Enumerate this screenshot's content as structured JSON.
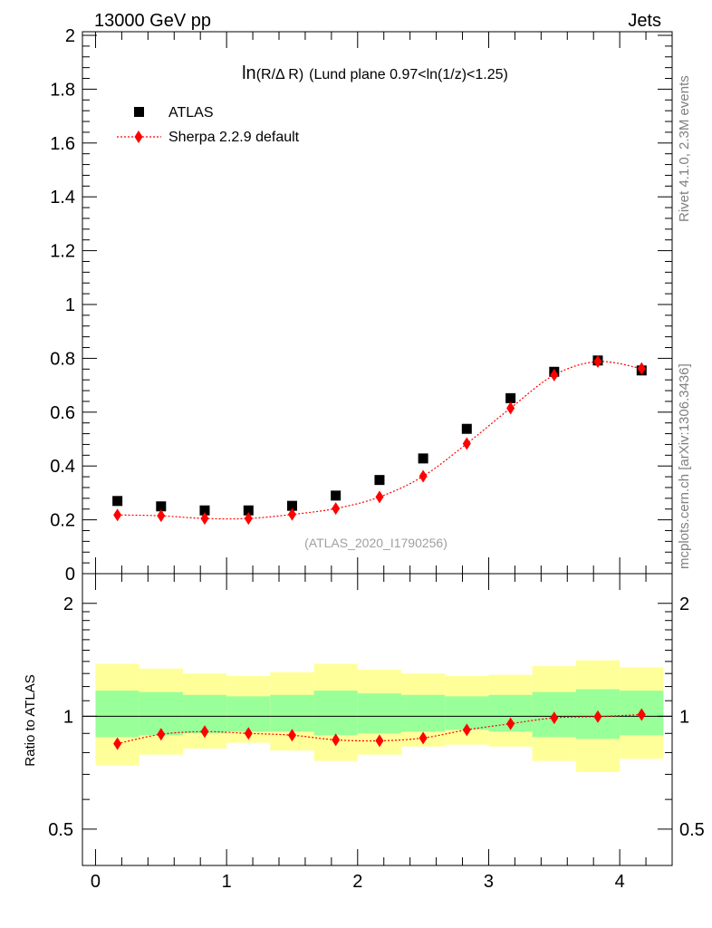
{
  "header": {
    "left": "13000 GeV pp",
    "right": "Jets"
  },
  "side_text": {
    "top": "Rivet 4.1.0,  2.3M events",
    "bottom": "mcplots.cern.ch [arXiv:1306.3436]"
  },
  "watermark": "(ATLAS_2020_I1790256)",
  "chart_data": [
    {
      "type": "scatter",
      "panel": "main",
      "title": "ln(R/Δ R) (Lund plane 0.97<ln(1/z)<1.25)",
      "title_parts": {
        "fn": "ln",
        "arg": "(R/Δ R)",
        "rest": "(Lund plane 0.97<ln(1/z)<1.25)"
      },
      "xlim": [
        -0.1,
        4.4
      ],
      "ylim": [
        0,
        2
      ],
      "yticks": [
        0,
        0.2,
        0.4,
        0.6,
        0.8,
        1,
        1.2,
        1.4,
        1.6,
        1.8,
        2
      ],
      "ytick_labels": [
        "0",
        "0.2",
        "0.4",
        "0.6",
        "0.8",
        "1",
        "1.2",
        "1.4",
        "1.6",
        "1.8",
        "2"
      ],
      "legend": {
        "position": "top-left"
      },
      "x": [
        0.167,
        0.5,
        0.833,
        1.167,
        1.5,
        1.833,
        2.167,
        2.5,
        2.833,
        3.167,
        3.5,
        3.833,
        4.167
      ],
      "series": [
        {
          "name": "ATLAS",
          "marker": "square",
          "color": "#000000",
          "values": [
            0.27,
            0.25,
            0.235,
            0.235,
            0.252,
            0.29,
            0.348,
            0.428,
            0.538,
            0.652,
            0.75,
            0.792,
            0.755
          ]
        },
        {
          "name": "Sherpa 2.2.9 default",
          "marker": "diamond",
          "color": "#ff0000",
          "line": "dotted",
          "values": [
            0.218,
            0.215,
            0.205,
            0.205,
            0.22,
            0.242,
            0.285,
            0.362,
            0.483,
            0.615,
            0.738,
            0.788,
            0.762
          ]
        }
      ]
    },
    {
      "type": "scatter",
      "panel": "ratio",
      "ylabel": "Ratio to ATLAS",
      "scale": "log",
      "xlim": [
        -0.1,
        4.4
      ],
      "ylim": [
        0.4,
        2.4
      ],
      "yticks": [
        0.5,
        1,
        2
      ],
      "ytick_labels": [
        "0.5",
        "1",
        "2"
      ],
      "xticks": [
        0,
        1,
        2,
        3,
        4
      ],
      "xtick_labels": [
        "0",
        "1",
        "2",
        "3",
        "4"
      ],
      "bin_edges": [
        0,
        0.333,
        0.667,
        1.0,
        1.333,
        1.667,
        2.0,
        2.333,
        2.667,
        3.0,
        3.333,
        3.667,
        4.0,
        4.333
      ],
      "band_yellow": {
        "lo": [
          0.74,
          0.79,
          0.82,
          0.85,
          0.81,
          0.76,
          0.79,
          0.83,
          0.84,
          0.83,
          0.76,
          0.71,
          0.77
        ],
        "hi": [
          1.38,
          1.34,
          1.3,
          1.28,
          1.31,
          1.38,
          1.33,
          1.3,
          1.28,
          1.29,
          1.36,
          1.41,
          1.35
        ]
      },
      "band_green": {
        "lo": [
          0.88,
          0.89,
          0.9,
          0.91,
          0.91,
          0.89,
          0.9,
          0.91,
          0.92,
          0.91,
          0.88,
          0.87,
          0.89
        ],
        "hi": [
          1.17,
          1.16,
          1.14,
          1.13,
          1.14,
          1.17,
          1.15,
          1.14,
          1.13,
          1.14,
          1.16,
          1.18,
          1.17
        ]
      },
      "x": [
        0.167,
        0.5,
        0.833,
        1.167,
        1.5,
        1.833,
        2.167,
        2.5,
        2.833,
        3.167,
        3.5,
        3.833,
        4.167
      ],
      "series": [
        {
          "name": "Sherpa 2.2.9 default",
          "marker": "diamond",
          "color": "#ff0000",
          "line": "dotted",
          "values": [
            0.845,
            0.895,
            0.91,
            0.9,
            0.89,
            0.865,
            0.86,
            0.875,
            0.92,
            0.955,
            0.99,
            0.998,
            1.01
          ]
        }
      ]
    }
  ],
  "colors": {
    "band_yellow": "#ffff99",
    "band_green": "#99ff99",
    "data": "#000000",
    "mc": "#ff0000",
    "side_text": "#808080"
  }
}
